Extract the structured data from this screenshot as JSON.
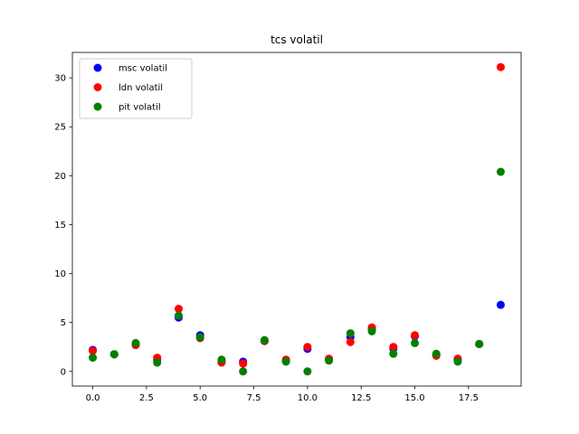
{
  "chart_data": {
    "type": "scatter",
    "title": "tcs volatil",
    "xlabel": "",
    "ylabel": "",
    "xlim": [
      -0.95,
      19.95
    ],
    "ylim": [
      -1.5,
      32.6
    ],
    "x_ticks": [
      "0.0",
      "2.5",
      "5.0",
      "7.5",
      "10.0",
      "12.5",
      "15.0",
      "17.5"
    ],
    "x_tick_values": [
      0,
      2.5,
      5,
      7.5,
      10,
      12.5,
      15,
      17.5
    ],
    "y_ticks": [
      "0",
      "5",
      "10",
      "15",
      "20",
      "25",
      "30"
    ],
    "y_tick_values": [
      0,
      5,
      10,
      15,
      20,
      25,
      30
    ],
    "grid": false,
    "legend_position": "top-left",
    "x": [
      0,
      1,
      2,
      3,
      4,
      5,
      6,
      7,
      8,
      9,
      10,
      11,
      12,
      13,
      14,
      15,
      16,
      17,
      18,
      19
    ],
    "series": [
      {
        "name": "msc volatil",
        "color": "#0000ff",
        "values": [
          2.2,
          1.75,
          2.7,
          1.2,
          5.5,
          3.7,
          1.0,
          1.0,
          3.1,
          1.1,
          2.3,
          1.2,
          3.5,
          4.3,
          2.3,
          3.6,
          1.7,
          1.2,
          2.8,
          6.8
        ]
      },
      {
        "name": "ldn volatil",
        "color": "#ff0000",
        "values": [
          2.1,
          1.75,
          2.7,
          1.4,
          6.4,
          3.4,
          0.9,
          0.8,
          3.1,
          1.2,
          2.5,
          1.3,
          3.0,
          4.5,
          2.5,
          3.7,
          1.6,
          1.3,
          2.8,
          31.1
        ]
      },
      {
        "name": "pit volatil",
        "color": "#008000",
        "values": [
          1.4,
          1.75,
          2.9,
          0.9,
          5.7,
          3.5,
          1.2,
          0.0,
          3.2,
          1.0,
          0.0,
          1.1,
          3.9,
          4.1,
          1.8,
          2.9,
          1.8,
          1.0,
          2.8,
          20.4
        ]
      }
    ]
  }
}
